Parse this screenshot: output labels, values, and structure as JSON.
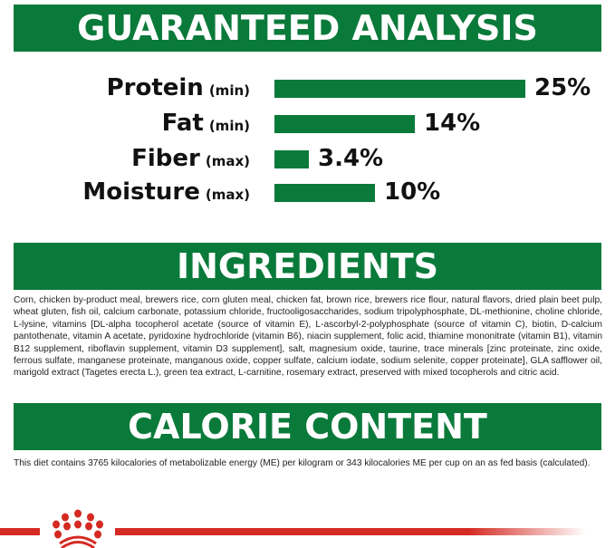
{
  "analysis": {
    "title": "GUARANTEED ANALYSIS",
    "items": [
      {
        "name": "Protein",
        "qualifier": "(min)",
        "value": "25%",
        "percent": 25
      },
      {
        "name": "Fat",
        "qualifier": "(min)",
        "value": "14%",
        "percent": 14
      },
      {
        "name": "Fiber",
        "qualifier": "(max)",
        "value": "3.4%",
        "percent": 3.4
      },
      {
        "name": "Moisture",
        "qualifier": "(max)",
        "value": "10%",
        "percent": 10
      }
    ]
  },
  "ingredients": {
    "title": "INGREDIENTS",
    "text": "Corn, chicken by-product meal, brewers rice, corn gluten meal, chicken fat, brown rice, brewers rice flour, natural flavors, dried plain beet pulp, wheat gluten, fish oil, calcium carbonate, potassium chloride, fructooligosaccharides, sodium tripolyphosphate, DL-methionine, choline chloride, L-lysine, vitamins [DL-alpha tocopherol acetate (source of vitamin E), L-ascorbyl-2-polyphosphate (source of vitamin C), biotin, D-calcium pantothenate, vitamin A acetate, pyridoxine hydrochloride (vitamin B6), niacin supplement, folic acid, thiamine mononitrate (vitamin B1), vitamin B12 supplement, riboflavin supplement, vitamin D3 supplement], salt, magnesium oxide, taurine, trace minerals [zinc proteinate, zinc oxide, ferrous sulfate, manganese proteinate, manganous oxide, copper sulfate, calcium iodate, sodium selenite, copper proteinate], GLA safflower oil, marigold extract (Tagetes erecta L.), green tea extract, L-carnitine, rosemary extract, preserved with mixed tocopherols and citric acid."
  },
  "calorie": {
    "title": "CALORIE CONTENT",
    "text": "This diet contains 3765 kilocalories of metabolizable energy (ME) per kilogram or 343 kilocalories ME per cup on an as fed basis (calculated)."
  },
  "colors": {
    "green": "#0a7a3a",
    "red": "#d42a22"
  },
  "logo": {
    "icon": "royal-canin-crown-icon"
  }
}
